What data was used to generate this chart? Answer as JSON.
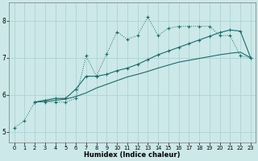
{
  "xlabel": "Humidex (Indice chaleur)",
  "xlim": [
    -0.5,
    23.5
  ],
  "ylim": [
    4.7,
    8.5
  ],
  "xticks": [
    0,
    1,
    2,
    3,
    4,
    5,
    6,
    7,
    8,
    9,
    10,
    11,
    12,
    13,
    14,
    15,
    16,
    17,
    18,
    19,
    20,
    21,
    22,
    23
  ],
  "yticks": [
    5,
    6,
    7,
    8
  ],
  "bg_color": "#cce8e8",
  "line_color": "#1a6b6b",
  "grid_color": "#aacfcf",
  "line1_x": [
    0,
    1,
    2,
    3,
    4,
    5,
    6,
    7,
    8,
    9,
    10,
    11,
    12,
    13,
    14,
    15,
    16,
    17,
    18,
    19,
    20,
    21,
    22,
    23
  ],
  "line1_y": [
    5.1,
    5.3,
    5.8,
    5.8,
    5.8,
    5.8,
    5.9,
    7.05,
    6.5,
    7.1,
    7.7,
    7.5,
    7.6,
    8.1,
    7.6,
    7.8,
    7.85,
    7.85,
    7.85,
    7.85,
    7.6,
    7.6,
    7.05,
    7.0
  ],
  "line2_x": [
    2,
    3,
    4,
    5,
    6,
    7,
    8,
    9,
    10,
    11,
    12,
    13,
    14,
    15,
    16,
    17,
    18,
    19,
    20,
    21,
    22,
    23
  ],
  "line2_y": [
    5.8,
    5.85,
    5.9,
    5.9,
    6.15,
    6.5,
    6.5,
    6.55,
    6.65,
    6.72,
    6.82,
    6.95,
    7.08,
    7.18,
    7.28,
    7.38,
    7.48,
    7.58,
    7.68,
    7.75,
    7.72,
    7.0
  ],
  "line3_x": [
    2,
    3,
    4,
    5,
    6,
    7,
    8,
    9,
    10,
    11,
    12,
    13,
    14,
    15,
    16,
    17,
    18,
    19,
    20,
    21,
    22,
    23
  ],
  "line3_y": [
    5.8,
    5.82,
    5.85,
    5.88,
    5.95,
    6.05,
    6.18,
    6.28,
    6.38,
    6.48,
    6.55,
    6.63,
    6.72,
    6.8,
    6.88,
    6.93,
    6.98,
    7.03,
    7.08,
    7.12,
    7.15,
    7.0
  ]
}
